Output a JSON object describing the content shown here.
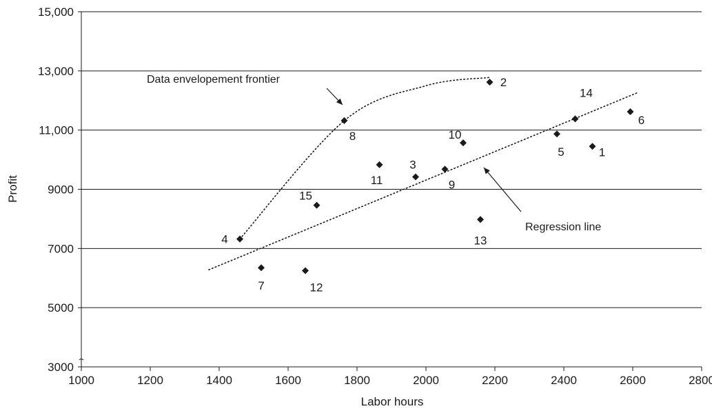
{
  "chart_data": {
    "type": "scatter",
    "xlabel": "Labor hours",
    "ylabel": "Profit",
    "xlim": [
      1000,
      2800
    ],
    "ylim": [
      3000,
      15000
    ],
    "x_ticks": [
      1000,
      1200,
      1400,
      1600,
      1800,
      2000,
      2200,
      2400,
      2600,
      2800
    ],
    "x_tick_labels": [
      "1000",
      "1200",
      "1400",
      "1600",
      "1800",
      "2000",
      "2200",
      "2400",
      "2600",
      "2800"
    ],
    "y_ticks": [
      3000,
      5000,
      7000,
      9000,
      11000,
      13000,
      15000
    ],
    "y_tick_labels": [
      "3000",
      "5000",
      "7000",
      "9000",
      "11,000",
      "13,000",
      "15,000"
    ],
    "grid": "horizontal",
    "marker_color": "#1a1a1a",
    "points": [
      {
        "label": "1",
        "x": 2483,
        "y": 10450
      },
      {
        "label": "2",
        "x": 2185,
        "y": 12620
      },
      {
        "label": "3",
        "x": 1970,
        "y": 9420
      },
      {
        "label": "4",
        "x": 1460,
        "y": 7320
      },
      {
        "label": "5",
        "x": 2380,
        "y": 10870
      },
      {
        "label": "6",
        "x": 2593,
        "y": 11620
      },
      {
        "label": "7",
        "x": 1522,
        "y": 6350
      },
      {
        "label": "8",
        "x": 1763,
        "y": 11320
      },
      {
        "label": "9",
        "x": 2055,
        "y": 9680
      },
      {
        "label": "10",
        "x": 2108,
        "y": 10570
      },
      {
        "label": "11",
        "x": 1865,
        "y": 9830
      },
      {
        "label": "12",
        "x": 1650,
        "y": 6250
      },
      {
        "label": "13",
        "x": 2158,
        "y": 7980
      },
      {
        "label": "14",
        "x": 2433,
        "y": 11380
      },
      {
        "label": "15",
        "x": 1683,
        "y": 8460
      }
    ],
    "regression_line": {
      "x": [
        1370,
        2615
      ],
      "y": [
        6280,
        12270
      ]
    },
    "frontier_curve": {
      "x": [
        1460,
        1763,
        2000,
        2185
      ],
      "y": [
        7320,
        11320,
        12500,
        12780
      ]
    },
    "annotations": [
      {
        "text": "Data envelopement frontier",
        "target": "frontier"
      },
      {
        "text": "Regression line",
        "target": "regression"
      }
    ]
  }
}
